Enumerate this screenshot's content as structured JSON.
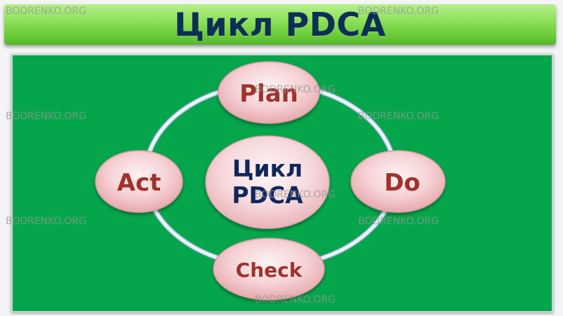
{
  "header": {
    "title": "Цикл PDCA"
  },
  "diagram": {
    "center": {
      "line1": "Цикл",
      "line2": "PDCA"
    },
    "nodes": {
      "plan": "Plan",
      "do": "Do",
      "check": "Check",
      "act": "Act"
    }
  },
  "watermark": {
    "text": "BODRENKO.ORG"
  },
  "colors": {
    "panel": "#05a64b",
    "banner": "#8fe15b",
    "node_fill": "#f4cdd0",
    "node_text": "#a0322d",
    "center_text": "#10275e",
    "ring": "#cde0f3"
  }
}
